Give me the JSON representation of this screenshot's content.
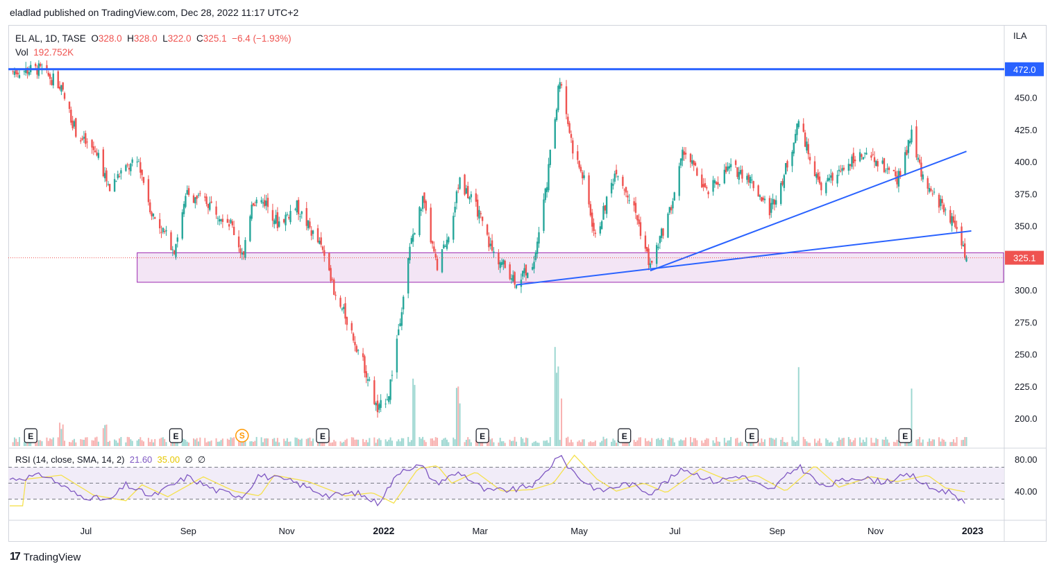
{
  "header": {
    "published": "eladlad published on TradingView.com, Dec 28, 2022 11:17 UTC+2"
  },
  "legend": {
    "symbol": "EL AL, 1D, TASE",
    "o_label": "O",
    "o_value": "328.0",
    "h_label": "H",
    "h_value": "328.0",
    "l_label": "L",
    "l_value": "322.0",
    "c_label": "C",
    "c_value": "325.1",
    "change": "−6.4 (−1.93%)",
    "vol_label": "Vol",
    "vol_value": "192.752K"
  },
  "rsi_legend": {
    "label": "RSI (14, close, SMA, 14, 2)",
    "rsi_value": "21.60",
    "sma_value": "35.00",
    "extra1": "∅",
    "extra2": "∅"
  },
  "currency": "ILA",
  "footer": {
    "brand": "TradingView",
    "logo": "17"
  },
  "colors": {
    "up": "#26a69a",
    "down": "#ef5350",
    "trend": "#2962ff",
    "zone_border": "#9c27b0",
    "zone_fill": "#f3e5f5",
    "rsi": "#7e57c2",
    "rsi_sma": "#f5e14d"
  },
  "events": [
    {
      "label": "E",
      "date": "2021-05-27"
    },
    {
      "label": "E",
      "date": "2021-08-25"
    },
    {
      "label": "S",
      "date": "2021-10-05"
    },
    {
      "label": "E",
      "date": "2021-11-24"
    },
    {
      "label": "E",
      "date": "2022-03-03"
    },
    {
      "label": "E",
      "date": "2022-05-30"
    },
    {
      "label": "E",
      "date": "2022-08-17"
    },
    {
      "label": "E",
      "date": "2022-11-20"
    }
  ],
  "chart_data": {
    "type": "candlestick",
    "title": "EL AL, 1D, TASE",
    "x_ticks": [
      "Jul",
      "Sep",
      "Nov",
      "2022",
      "Mar",
      "May",
      "Jul",
      "Sep",
      "Nov",
      "2023"
    ],
    "y_ticks": [
      200.0,
      225.0,
      250.0,
      275.0,
      300.0,
      325.0,
      350.0,
      375.0,
      400.0,
      425.0,
      450.0
    ],
    "y_range": [
      180,
      480
    ],
    "last_price": 325.1,
    "resistance_line": 472.0,
    "support_zone": {
      "top": 329,
      "bottom": 306,
      "start_date": "2021-08-01"
    },
    "trendlines": [
      {
        "from": {
          "date": "2022-03-24",
          "price": 304
        },
        "to": {
          "date": "2022-12-31",
          "price": 346
        }
      },
      {
        "from": {
          "date": "2022-06-15",
          "price": 315
        },
        "to": {
          "date": "2022-12-28",
          "price": 408
        }
      }
    ],
    "price_points": [
      {
        "date": "2021-05-14",
        "close": 470
      },
      {
        "date": "2021-06-01",
        "close": 472
      },
      {
        "date": "2021-06-14",
        "close": 460
      },
      {
        "date": "2021-06-25",
        "close": 420
      },
      {
        "date": "2021-07-08",
        "close": 405
      },
      {
        "date": "2021-07-15",
        "close": 378
      },
      {
        "date": "2021-07-22",
        "close": 392
      },
      {
        "date": "2021-08-02",
        "close": 400
      },
      {
        "date": "2021-08-10",
        "close": 360
      },
      {
        "date": "2021-08-24",
        "close": 332
      },
      {
        "date": "2021-09-01",
        "close": 375
      },
      {
        "date": "2021-09-14",
        "close": 368
      },
      {
        "date": "2021-09-28",
        "close": 352
      },
      {
        "date": "2021-10-06",
        "close": 325
      },
      {
        "date": "2021-10-11",
        "close": 370
      },
      {
        "date": "2021-10-20",
        "close": 368
      },
      {
        "date": "2021-10-27",
        "close": 352
      },
      {
        "date": "2021-11-08",
        "close": 365
      },
      {
        "date": "2021-11-22",
        "close": 335
      },
      {
        "date": "2021-11-28",
        "close": 320
      },
      {
        "date": "2021-12-01",
        "close": 295
      },
      {
        "date": "2021-12-08",
        "close": 280
      },
      {
        "date": "2021-12-20",
        "close": 240
      },
      {
        "date": "2021-12-28",
        "close": 205
      },
      {
        "date": "2022-01-04",
        "close": 220
      },
      {
        "date": "2022-01-10",
        "close": 270
      },
      {
        "date": "2022-01-18",
        "close": 340
      },
      {
        "date": "2022-01-25",
        "close": 370
      },
      {
        "date": "2022-02-03",
        "close": 315
      },
      {
        "date": "2022-02-10",
        "close": 345
      },
      {
        "date": "2022-02-17",
        "close": 385
      },
      {
        "date": "2022-02-28",
        "close": 362
      },
      {
        "date": "2022-03-09",
        "close": 330
      },
      {
        "date": "2022-03-24",
        "close": 307
      },
      {
        "date": "2022-04-04",
        "close": 322
      },
      {
        "date": "2022-04-12",
        "close": 385
      },
      {
        "date": "2022-04-20",
        "close": 465
      },
      {
        "date": "2022-04-28",
        "close": 410
      },
      {
        "date": "2022-05-05",
        "close": 385
      },
      {
        "date": "2022-05-12",
        "close": 340
      },
      {
        "date": "2022-05-25",
        "close": 395
      },
      {
        "date": "2022-06-06",
        "close": 360
      },
      {
        "date": "2022-06-15",
        "close": 318
      },
      {
        "date": "2022-06-28",
        "close": 365
      },
      {
        "date": "2022-07-06",
        "close": 410
      },
      {
        "date": "2022-07-20",
        "close": 375
      },
      {
        "date": "2022-08-03",
        "close": 395
      },
      {
        "date": "2022-08-14",
        "close": 390
      },
      {
        "date": "2022-08-28",
        "close": 362
      },
      {
        "date": "2022-09-06",
        "close": 390
      },
      {
        "date": "2022-09-15",
        "close": 430
      },
      {
        "date": "2022-09-28",
        "close": 380
      },
      {
        "date": "2022-10-08",
        "close": 388
      },
      {
        "date": "2022-10-20",
        "close": 405
      },
      {
        "date": "2022-11-03",
        "close": 400
      },
      {
        "date": "2022-11-15",
        "close": 385
      },
      {
        "date": "2022-11-24",
        "close": 420
      },
      {
        "date": "2022-12-02",
        "close": 380
      },
      {
        "date": "2022-12-14",
        "close": 365
      },
      {
        "date": "2022-12-23",
        "close": 345
      },
      {
        "date": "2022-12-28",
        "close": 325.1
      }
    ],
    "volume_spikes": [
      {
        "date": "2021-06-15",
        "volume_share": 0.26
      },
      {
        "date": "2021-07-12",
        "volume_share": 0.28
      },
      {
        "date": "2022-04-18",
        "volume_share": 1.0
      },
      {
        "date": "2022-04-22",
        "volume_share": 0.7
      },
      {
        "date": "2022-09-16",
        "volume_share": 1.0
      },
      {
        "date": "2022-11-25",
        "volume_share": 0.6
      },
      {
        "date": "2022-01-20",
        "volume_share": 0.7
      },
      {
        "date": "2022-02-16",
        "volume_share": 0.65
      }
    ],
    "rsi": {
      "y_ticks": [
        40.0,
        80.0
      ],
      "upper_band": 70,
      "mid_band": 50,
      "lower_band": 30,
      "points": [
        {
          "date": "2021-05-14",
          "rsi": 55
        },
        {
          "date": "2021-06-05",
          "rsi": 60
        },
        {
          "date": "2021-06-25",
          "rsi": 35
        },
        {
          "date": "2021-07-15",
          "rsi": 28
        },
        {
          "date": "2021-07-25",
          "rsi": 48
        },
        {
          "date": "2021-08-10",
          "rsi": 33
        },
        {
          "date": "2021-09-01",
          "rsi": 58
        },
        {
          "date": "2021-09-20",
          "rsi": 40
        },
        {
          "date": "2021-10-06",
          "rsi": 34
        },
        {
          "date": "2021-10-15",
          "rsi": 60
        },
        {
          "date": "2021-11-05",
          "rsi": 52
        },
        {
          "date": "2021-11-28",
          "rsi": 34
        },
        {
          "date": "2021-12-15",
          "rsi": 38
        },
        {
          "date": "2021-12-28",
          "rsi": 25
        },
        {
          "date": "2022-01-12",
          "rsi": 68
        },
        {
          "date": "2022-01-24",
          "rsi": 72
        },
        {
          "date": "2022-02-02",
          "rsi": 50
        },
        {
          "date": "2022-02-17",
          "rsi": 64
        },
        {
          "date": "2022-03-05",
          "rsi": 40
        },
        {
          "date": "2022-03-24",
          "rsi": 42
        },
        {
          "date": "2022-04-06",
          "rsi": 50
        },
        {
          "date": "2022-04-19",
          "rsi": 85
        },
        {
          "date": "2022-05-03",
          "rsi": 55
        },
        {
          "date": "2022-05-15",
          "rsi": 40
        },
        {
          "date": "2022-06-01",
          "rsi": 50
        },
        {
          "date": "2022-06-15",
          "rsi": 38
        },
        {
          "date": "2022-07-06",
          "rsi": 68
        },
        {
          "date": "2022-07-25",
          "rsi": 52
        },
        {
          "date": "2022-08-10",
          "rsi": 60
        },
        {
          "date": "2022-08-28",
          "rsi": 40
        },
        {
          "date": "2022-09-15",
          "rsi": 72
        },
        {
          "date": "2022-09-30",
          "rsi": 45
        },
        {
          "date": "2022-10-20",
          "rsi": 58
        },
        {
          "date": "2022-11-05",
          "rsi": 52
        },
        {
          "date": "2022-11-24",
          "rsi": 60
        },
        {
          "date": "2022-12-05",
          "rsi": 44
        },
        {
          "date": "2022-12-20",
          "rsi": 38
        },
        {
          "date": "2022-12-28",
          "rsi": 21.6
        }
      ]
    }
  }
}
